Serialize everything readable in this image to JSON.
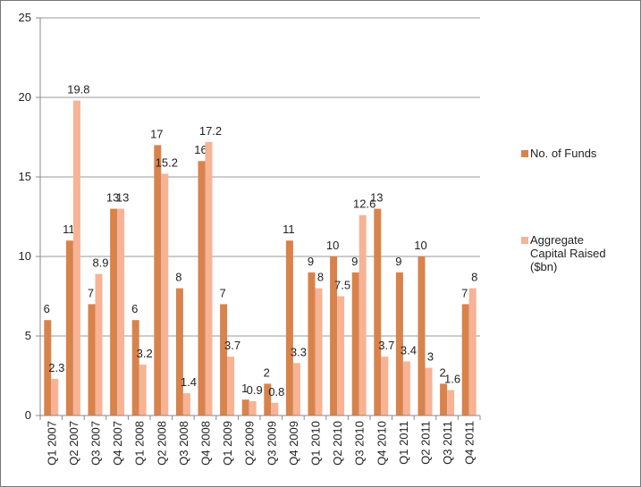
{
  "chart_data": {
    "type": "bar",
    "categories": [
      "Q1 2007",
      "Q2 2007",
      "Q3 2007",
      "Q4 2007",
      "Q1 2008",
      "Q2 2008",
      "Q3 2008",
      "Q4 2008",
      "Q1 2009",
      "Q2 2009",
      "Q3 2009",
      "Q4 2009",
      "Q1 2010",
      "Q2 2010",
      "Q3 2010",
      "Q4 2010",
      "Q1 2011",
      "Q2 2011",
      "Q3 2011",
      "Q4 2011"
    ],
    "series": [
      {
        "name": "No. of Funds",
        "color": "#d8834c",
        "values": [
          6,
          11,
          7,
          13,
          6,
          17,
          8,
          16,
          7,
          1,
          2,
          11,
          9,
          10,
          9,
          13,
          9,
          10,
          2,
          7
        ]
      },
      {
        "name": "Aggregate Capital Raised ($bn)",
        "color": "#f6b396",
        "values": [
          2.3,
          19.8,
          8.9,
          13,
          3.2,
          15.2,
          1.4,
          17.2,
          3.7,
          0.9,
          0.8,
          3.3,
          8,
          7.5,
          12.6,
          3.7,
          3.4,
          3,
          1.6,
          8
        ]
      }
    ],
    "ylim": [
      0,
      25
    ],
    "yticks": [
      0,
      5,
      10,
      15,
      20,
      25
    ],
    "grid": true,
    "legend": "right"
  }
}
